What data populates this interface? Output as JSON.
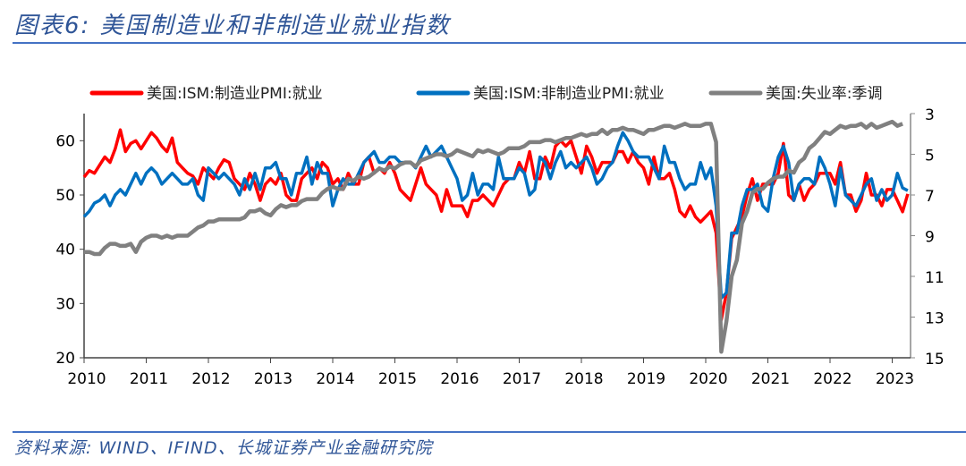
{
  "title": "图表6:  美国制造业和非制造业就业指数",
  "source": "资料来源:  WIND、IFIND、长城证券产业金融研究院",
  "chart_data": {
    "type": "line",
    "title": "图表6:  美国制造业和非制造业就业指数",
    "x_start": "2010-01",
    "frequency": "monthly",
    "x_tick_labels": [
      "2010",
      "2011",
      "2012",
      "2013",
      "2014",
      "2015",
      "2016",
      "2017",
      "2018",
      "2019",
      "2020",
      "2021",
      "2022",
      "2023"
    ],
    "left_axis": {
      "range": [
        20,
        65
      ],
      "ticks": [
        20,
        30,
        40,
        50,
        60
      ]
    },
    "right_axis": {
      "range": [
        3,
        15
      ],
      "inverted": true,
      "ticks": [
        3,
        5,
        7,
        9,
        11,
        13,
        15
      ]
    },
    "legend_position": "top",
    "grid": false,
    "series": [
      {
        "name": "美国:ISM:制造业PMI:就业",
        "axis": "left",
        "color": "#ff0000",
        "values": [
          53.3,
          54.5,
          54.0,
          55.5,
          57,
          56,
          58.5,
          62,
          58,
          59.5,
          60,
          58.5,
          60,
          61.5,
          60.5,
          59,
          58,
          60.5,
          56,
          55,
          54,
          53.5,
          52,
          55,
          54,
          53,
          55,
          56.5,
          56,
          53,
          52,
          51,
          54,
          52,
          49,
          52,
          53,
          52,
          54,
          50,
          49,
          49,
          53,
          54,
          55,
          53,
          56,
          55,
          52,
          53,
          51,
          54,
          52,
          52,
          56,
          57,
          54,
          55,
          54,
          56,
          54,
          51,
          50,
          49,
          52,
          55,
          52,
          51,
          50,
          47,
          51,
          48,
          48,
          48,
          46,
          49,
          49,
          50,
          49,
          48,
          50,
          52,
          53,
          53,
          56,
          54,
          58,
          53,
          53,
          57,
          55,
          59,
          60,
          59,
          60,
          57,
          54,
          59,
          57,
          54,
          56,
          56,
          56,
          58,
          58,
          56,
          58,
          56,
          55,
          52,
          57,
          53,
          53,
          54,
          51,
          47,
          46,
          48,
          46,
          45,
          46,
          47,
          43,
          27,
          32,
          42,
          44,
          46,
          50,
          53,
          49,
          52,
          52,
          52,
          54,
          59.5,
          50,
          49,
          52,
          49,
          51,
          52,
          54,
          54,
          54,
          52,
          56,
          50,
          50,
          47,
          49,
          54,
          50,
          50,
          48,
          51,
          51,
          49,
          46.9,
          50.2
        ]
      },
      {
        "name": "美国:ISM:非制造业PMI:就业",
        "axis": "left",
        "color": "#0070c0",
        "values": [
          46,
          47,
          48.5,
          49,
          50,
          48,
          50,
          51,
          50,
          52,
          54,
          52,
          54,
          55,
          54,
          52,
          53,
          54,
          53,
          52,
          52,
          53,
          50,
          49,
          55,
          54,
          53,
          54,
          53,
          52,
          50,
          53,
          51,
          54,
          51,
          55,
          55,
          56,
          53,
          53,
          50,
          54,
          54,
          57,
          52,
          56,
          54,
          54,
          48,
          51,
          53,
          52,
          52,
          54,
          56,
          57,
          58,
          56,
          56,
          57,
          57,
          56,
          56,
          56,
          55,
          57,
          59,
          57,
          58,
          59,
          57,
          55,
          53,
          49,
          50,
          54,
          50,
          52,
          52,
          51,
          57,
          53,
          53,
          53,
          55,
          54,
          50,
          51,
          57,
          56,
          53,
          56,
          58,
          55,
          56,
          55,
          56,
          57,
          55,
          52,
          53,
          55,
          56,
          59,
          61.5,
          60,
          58,
          57,
          57,
          57,
          55,
          53,
          59,
          56,
          56,
          53,
          51,
          52,
          52,
          56,
          53,
          55,
          48,
          31,
          32,
          43,
          43,
          48,
          51,
          51,
          52,
          48,
          47,
          53,
          57,
          59,
          56,
          49,
          52,
          53,
          53,
          52,
          57,
          55,
          52,
          48,
          55,
          50,
          49,
          48,
          50,
          52,
          53,
          49,
          51,
          49,
          50,
          54,
          51.3,
          50.8
        ]
      },
      {
        "name": "美国:失业率:季调",
        "axis": "right",
        "color": "#808080",
        "values": [
          9.8,
          9.8,
          9.9,
          9.9,
          9.6,
          9.4,
          9.4,
          9.5,
          9.5,
          9.4,
          9.8,
          9.3,
          9.1,
          9.0,
          9.0,
          9.1,
          9.0,
          9.1,
          9.0,
          9.0,
          9.0,
          8.8,
          8.6,
          8.5,
          8.3,
          8.3,
          8.2,
          8.2,
          8.2,
          8.2,
          8.2,
          8.1,
          7.8,
          7.8,
          7.7,
          7.9,
          8.0,
          7.7,
          7.5,
          7.6,
          7.5,
          7.5,
          7.3,
          7.2,
          7.2,
          7.2,
          6.9,
          6.7,
          6.6,
          6.7,
          6.7,
          6.2,
          6.3,
          6.1,
          6.2,
          6.1,
          5.9,
          5.7,
          5.8,
          5.6,
          5.7,
          5.5,
          5.4,
          5.4,
          5.6,
          5.3,
          5.2,
          5.1,
          5.0,
          5.0,
          5.1,
          5.0,
          4.8,
          4.9,
          5.0,
          5.1,
          4.8,
          4.9,
          4.8,
          4.9,
          5.0,
          4.9,
          4.7,
          4.7,
          4.7,
          4.6,
          4.4,
          4.4,
          4.4,
          4.3,
          4.3,
          4.4,
          4.3,
          4.2,
          4.2,
          4.1,
          4.0,
          4.1,
          4.0,
          4.0,
          3.8,
          4.0,
          3.8,
          3.8,
          3.7,
          3.8,
          3.8,
          3.9,
          4.0,
          3.8,
          3.8,
          3.7,
          3.6,
          3.6,
          3.7,
          3.6,
          3.5,
          3.6,
          3.6,
          3.6,
          3.5,
          3.5,
          4.4,
          14.7,
          13.2,
          11.0,
          10.2,
          8.4,
          7.8,
          6.9,
          6.7,
          6.7,
          6.4,
          6.2,
          6.1,
          6.1,
          5.8,
          5.9,
          5.4,
          5.2,
          4.7,
          4.5,
          4.2,
          3.9,
          4.0,
          3.8,
          3.6,
          3.7,
          3.6,
          3.6,
          3.5,
          3.7,
          3.5,
          3.7,
          3.6,
          3.5,
          3.4,
          3.6,
          3.5
        ]
      }
    ]
  }
}
